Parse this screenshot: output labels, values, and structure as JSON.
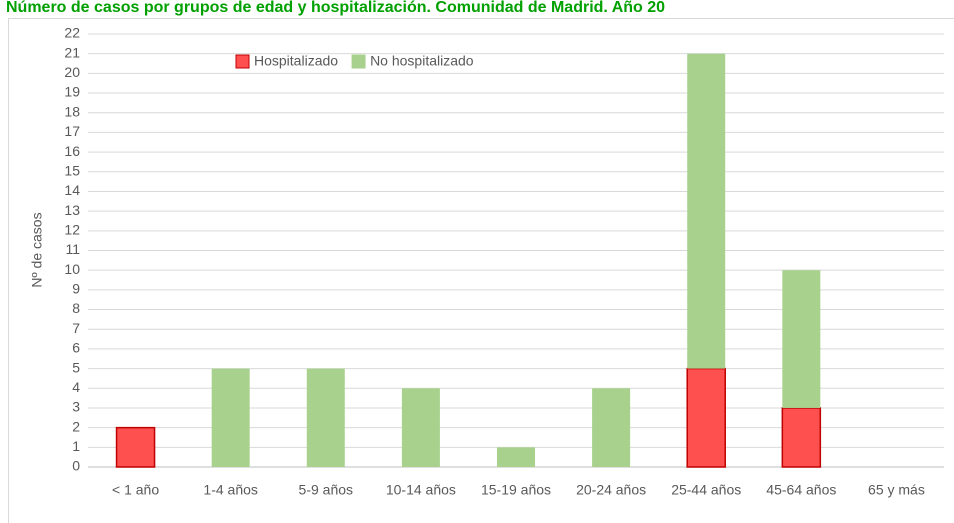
{
  "chart_data": {
    "type": "stacked-bar",
    "title": "Número de casos por grupos de edad y hospitalización. Comunidad de Madrid. Año 20",
    "y_label": "Nº de casos",
    "categories": [
      "< 1 año",
      "1-4 años",
      "5-9 años",
      "10-14 años",
      "15-19 años",
      "20-24 años",
      "25-44 años",
      "45-64 años",
      "65 y más"
    ],
    "series": [
      {
        "name": "Hospitalizado",
        "color": "#ff5050",
        "values": [
          2,
          0,
          0,
          0,
          0,
          0,
          5,
          3,
          0
        ]
      },
      {
        "name": "No hospitalizado",
        "color": "#a9d18e",
        "values": [
          0,
          5,
          5,
          4,
          1,
          4,
          16,
          7,
          0
        ]
      }
    ],
    "ylim": [
      0,
      22
    ],
    "yticks": [
      0,
      1,
      2,
      3,
      4,
      5,
      6,
      7,
      8,
      9,
      10,
      11,
      12,
      13,
      14,
      15,
      16,
      17,
      18,
      19,
      20,
      21,
      22
    ],
    "grid": true,
    "legend": "top"
  }
}
